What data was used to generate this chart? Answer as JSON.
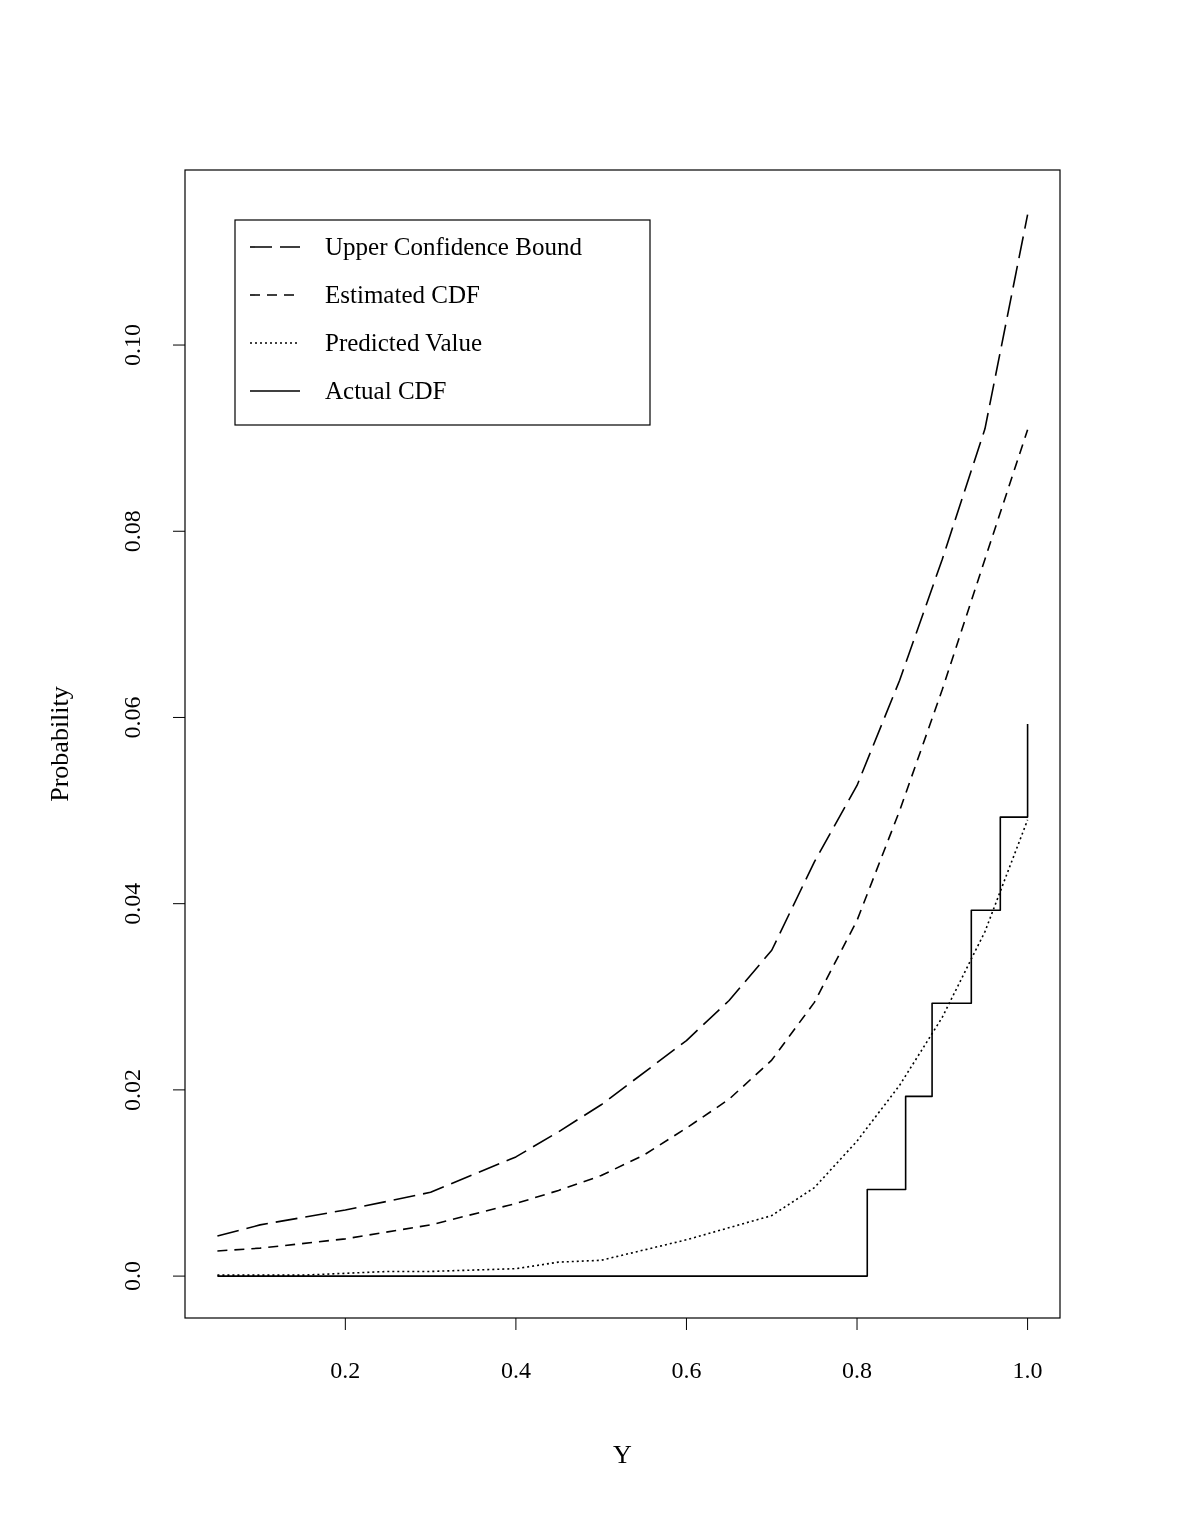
{
  "chart_data": {
    "type": "line",
    "xlabel": "Y",
    "ylabel": "Probability",
    "xlim": [
      0.012,
      1.038
    ],
    "ylim": [
      -0.0045,
      0.1188
    ],
    "xticks": [
      0.2,
      0.4,
      0.6,
      0.8,
      {
        "value": 1,
        "label": "1.0"
      }
    ],
    "yticks": [
      {
        "value": 0,
        "label": "0.0"
      },
      0.02,
      0.04,
      0.06,
      0.08,
      {
        "value": 0.1,
        "label": "0.10"
      }
    ],
    "grid": false,
    "legend": "top left",
    "series": [
      {
        "name": "Upper Confidence Bound",
        "color": "#000000",
        "line_style": "dashed",
        "x": [
          0.05,
          0.1,
          0.2,
          0.3,
          0.4,
          0.45,
          0.5,
          0.6,
          0.65,
          0.7,
          0.75,
          0.8,
          0.85,
          0.9,
          0.95,
          1.0
        ],
        "values": [
          0.0043,
          0.0055,
          0.0071,
          0.009,
          0.0128,
          0.0155,
          0.0184,
          0.0253,
          0.0296,
          0.035,
          0.0445,
          0.0527,
          0.064,
          0.077,
          0.091,
          0.114
        ]
      },
      {
        "name": "Estimated CDF",
        "color": "#000000",
        "line_style": "dashed",
        "x": [
          0.05,
          0.1,
          0.2,
          0.3,
          0.4,
          0.45,
          0.5,
          0.55,
          0.6,
          0.65,
          0.7,
          0.75,
          0.8,
          0.85,
          0.9,
          0.95,
          1.0
        ],
        "values": [
          0.0027,
          0.003,
          0.004,
          0.0055,
          0.0078,
          0.0092,
          0.0108,
          0.013,
          0.0159,
          0.019,
          0.0232,
          0.0294,
          0.0382,
          0.05,
          0.063,
          0.077,
          0.0909
        ]
      },
      {
        "name": "Predicted Value",
        "color": "#000000",
        "line_style": "dotted",
        "x": [
          0.05,
          0.15,
          0.25,
          0.3,
          0.4,
          0.45,
          0.5,
          0.6,
          0.7,
          0.75,
          0.8,
          0.85,
          0.9,
          0.95,
          1.0
        ],
        "values": [
          0.0001,
          0.0001,
          0.0005,
          0.0005,
          0.0008,
          0.0015,
          0.0017,
          0.0039,
          0.0065,
          0.0095,
          0.0145,
          0.0205,
          0.0278,
          0.037,
          0.049
        ]
      },
      {
        "name": "Actual CDF",
        "color": "#000000",
        "type": "step",
        "line_style": "solid",
        "x": [
          0.05,
          0.812,
          0.857,
          0.888,
          0.934,
          0.968,
          1.0
        ],
        "values": [
          0,
          0.0093,
          0.0193,
          0.0293,
          0.0393,
          0.0493,
          0.0593
        ]
      }
    ]
  }
}
